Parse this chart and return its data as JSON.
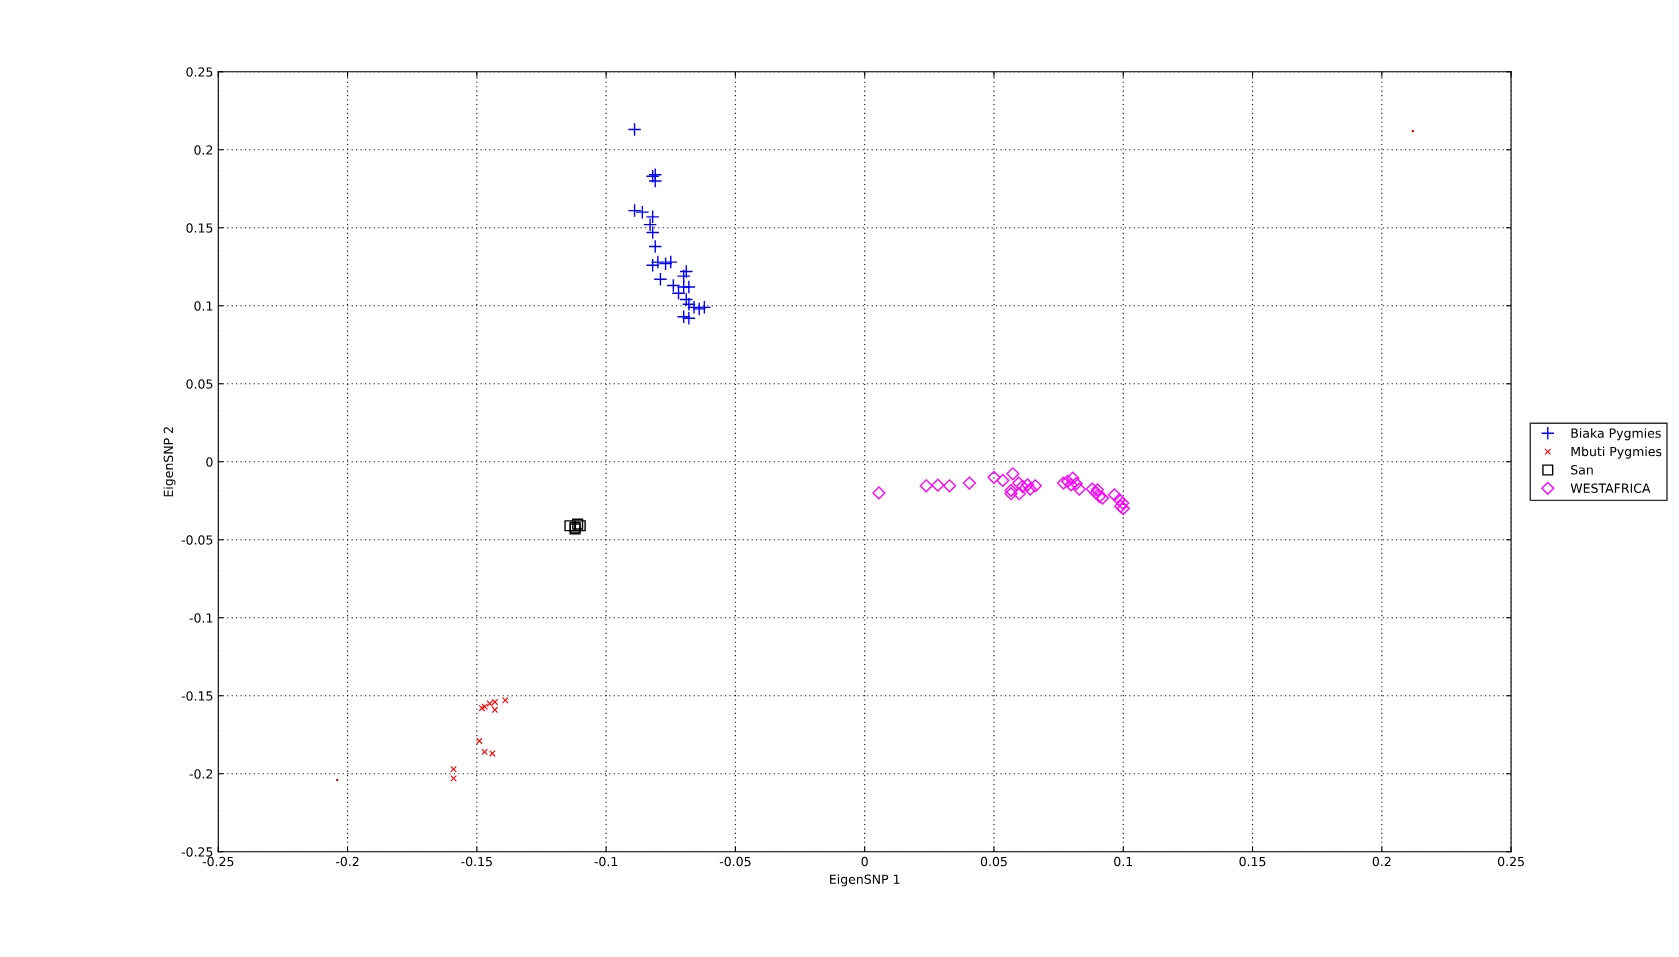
{
  "chart_data": {
    "type": "scatter",
    "xlabel": "EigenSNP 1",
    "ylabel": "EigenSNP 2",
    "xlim": [
      -0.25,
      0.25
    ],
    "ylim": [
      -0.25,
      0.25
    ],
    "xticks": [
      -0.25,
      -0.2,
      -0.15,
      -0.1,
      -0.05,
      0,
      0.05,
      0.1,
      0.15,
      0.2,
      0.25
    ],
    "yticks": [
      -0.25,
      -0.2,
      -0.15,
      -0.1,
      -0.05,
      0,
      0.05,
      0.1,
      0.15,
      0.2,
      0.25
    ],
    "grid": true,
    "legend": "right",
    "series": [
      {
        "name": "Biaka Pygmies",
        "color": "#0000ff",
        "marker": "plus",
        "x": [
          -0.089,
          -0.081,
          -0.082,
          -0.081,
          -0.089,
          -0.086,
          -0.082,
          -0.083,
          -0.082,
          -0.081,
          -0.082,
          -0.079,
          -0.08,
          -0.077,
          -0.075,
          -0.074,
          -0.072,
          -0.07,
          -0.069,
          -0.07,
          -0.068,
          -0.069,
          -0.068,
          -0.066,
          -0.064,
          -0.062,
          -0.07,
          -0.068
        ],
        "values": [
          0.213,
          0.184,
          0.183,
          0.18,
          0.161,
          0.16,
          0.157,
          0.152,
          0.147,
          0.138,
          0.126,
          0.117,
          0.128,
          0.127,
          0.128,
          0.113,
          0.108,
          0.119,
          0.122,
          0.112,
          0.112,
          0.104,
          0.101,
          0.099,
          0.098,
          0.099,
          0.093,
          0.092
        ]
      },
      {
        "name": "Mbuti Pygmies",
        "color": "#ff0000",
        "marker": "cross",
        "x": [
          -0.139,
          -0.143,
          -0.145,
          -0.147,
          -0.143,
          -0.148,
          -0.149,
          -0.147,
          -0.144,
          -0.159,
          -0.159
        ],
        "values": [
          -0.153,
          -0.154,
          -0.155,
          -0.157,
          -0.159,
          -0.158,
          -0.179,
          -0.186,
          -0.187,
          -0.197,
          -0.203
        ]
      },
      {
        "name": "San",
        "color": "#000000",
        "marker": "square",
        "x": [
          -0.114,
          -0.112,
          -0.111,
          -0.112,
          -0.11
        ],
        "values": [
          -0.041,
          -0.042,
          -0.04,
          -0.043,
          -0.041
        ]
      },
      {
        "name": "WESTAFRICA",
        "color": "#ff00ff",
        "marker": "diamond",
        "x": [
          0.0055,
          0.0238,
          0.0283,
          0.0328,
          0.0405,
          0.05,
          0.0534,
          0.0573,
          0.0596,
          0.0566,
          0.0566,
          0.0598,
          0.061,
          0.063,
          0.064,
          0.066,
          0.0785,
          0.0805,
          0.0798,
          0.0818,
          0.083,
          0.088,
          0.0895,
          0.09,
          0.0908,
          0.092,
          0.0966,
          0.0985,
          0.0998,
          0.1,
          0.099,
          0.0769
        ],
        "values": [
          -0.02,
          -0.0154,
          -0.015,
          -0.0154,
          -0.0137,
          -0.01,
          -0.012,
          -0.0077,
          -0.0137,
          -0.0184,
          -0.0205,
          -0.0205,
          -0.0158,
          -0.0148,
          -0.0175,
          -0.0154,
          -0.0126,
          -0.0105,
          -0.0148,
          -0.0141,
          -0.0175,
          -0.0175,
          -0.02,
          -0.018,
          -0.0222,
          -0.0233,
          -0.0212,
          -0.0244,
          -0.0265,
          -0.03,
          -0.0286,
          -0.0137
        ]
      },
      {
        "color": "#cc0000",
        "marker": "point",
        "x": [
          0.212,
          -0.204
        ],
        "values": [
          0.212,
          -0.204
        ]
      }
    ]
  }
}
